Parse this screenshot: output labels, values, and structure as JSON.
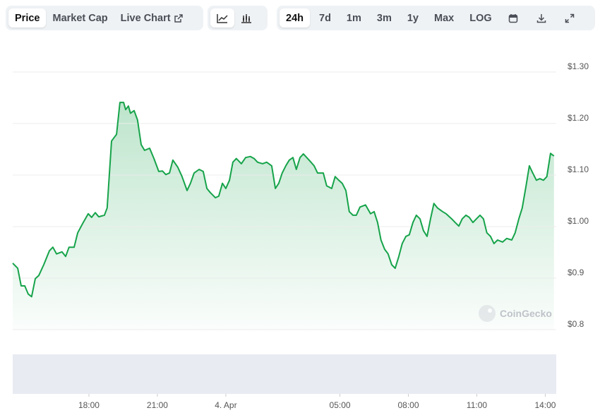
{
  "toolbar": {
    "tabs": [
      "Price",
      "Market Cap",
      "Live Chart"
    ],
    "ranges": [
      "24h",
      "7d",
      "1m",
      "3m",
      "1y",
      "Max",
      "LOG"
    ]
  },
  "chart_data": {
    "type": "area",
    "watermark": "CoinGecko",
    "color": "#16a34a",
    "x": [
      14.66,
      14.88,
      15.03,
      15.19,
      15.34,
      15.49,
      15.65,
      15.8,
      16.02,
      16.27,
      16.42,
      16.58,
      16.82,
      16.98,
      17.13,
      17.35,
      17.51,
      17.75,
      17.97,
      18.12,
      18.28,
      18.43,
      18.68,
      18.8,
      18.99,
      19.11,
      19.21,
      19.36,
      19.52,
      19.61,
      19.73,
      19.82,
      19.98,
      20.13,
      20.29,
      20.44,
      20.66,
      20.85,
      21.06,
      21.22,
      21.37,
      21.53,
      21.68,
      21.9,
      22.08,
      22.3,
      22.45,
      22.61,
      22.83,
      23.01,
      23.17,
      23.32,
      23.54,
      23.69,
      23.85,
      24.0,
      24.16,
      24.31,
      24.46,
      24.68,
      24.87,
      25.08,
      25.24,
      25.39,
      25.61,
      25.79,
      26.01,
      26.17,
      26.32,
      26.47,
      26.63,
      26.78,
      26.94,
      27.09,
      27.25,
      27.4,
      27.65,
      27.87,
      28.02,
      28.27,
      28.42,
      28.64,
      28.79,
      28.95,
      29.1,
      29.26,
      29.41,
      29.57,
      29.72,
      29.88,
      30.12,
      30.34,
      30.5,
      30.65,
      30.8,
      30.96,
      31.11,
      31.27,
      31.42,
      31.58,
      31.73,
      31.89,
      32.04,
      32.2,
      32.35,
      32.51,
      32.66,
      32.82,
      32.97,
      33.12,
      33.28,
      33.5,
      33.65,
      33.9,
      34.05,
      34.21,
      34.36,
      34.52,
      34.67,
      34.83,
      34.98,
      35.14,
      35.29,
      35.44,
      35.6,
      35.75,
      35.91,
      36.13,
      36.31,
      36.53,
      36.68,
      36.84,
      36.99,
      37.15,
      37.3,
      37.45,
      37.61,
      37.76,
      37.92,
      38.07,
      38.23,
      38.38
    ],
    "values": [
      0.929,
      0.919,
      0.885,
      0.885,
      0.869,
      0.864,
      0.899,
      0.905,
      0.926,
      0.953,
      0.96,
      0.947,
      0.951,
      0.942,
      0.96,
      0.96,
      0.988,
      1.008,
      1.025,
      1.018,
      1.027,
      1.019,
      1.022,
      1.036,
      1.166,
      1.173,
      1.179,
      1.241,
      1.241,
      1.227,
      1.234,
      1.22,
      1.225,
      1.207,
      1.159,
      1.148,
      1.152,
      1.132,
      1.107,
      1.108,
      1.101,
      1.104,
      1.129,
      1.115,
      1.097,
      1.07,
      1.084,
      1.104,
      1.111,
      1.107,
      1.074,
      1.066,
      1.056,
      1.059,
      1.084,
      1.074,
      1.09,
      1.125,
      1.132,
      1.122,
      1.134,
      1.136,
      1.132,
      1.125,
      1.122,
      1.125,
      1.118,
      1.074,
      1.084,
      1.104,
      1.118,
      1.129,
      1.134,
      1.111,
      1.134,
      1.141,
      1.129,
      1.118,
      1.104,
      1.104,
      1.079,
      1.074,
      1.097,
      1.09,
      1.084,
      1.07,
      1.029,
      1.022,
      1.022,
      1.038,
      1.042,
      1.025,
      1.029,
      1.008,
      0.974,
      0.956,
      0.947,
      0.926,
      0.919,
      0.942,
      0.967,
      0.981,
      0.984,
      1.008,
      1.022,
      1.015,
      0.992,
      0.981,
      1.015,
      1.045,
      1.036,
      1.029,
      1.025,
      1.015,
      1.008,
      1.001,
      1.015,
      1.022,
      1.018,
      1.008,
      1.015,
      1.022,
      1.015,
      0.988,
      0.981,
      0.967,
      0.974,
      0.97,
      0.977,
      0.974,
      0.988,
      1.015,
      1.036,
      1.077,
      1.118,
      1.104,
      1.09,
      1.093,
      1.09,
      1.097,
      1.142,
      1.137
    ],
    "xlim": [
      14.66,
      38.48
    ],
    "xticks": [
      {
        "value": 18,
        "label": "18:00"
      },
      {
        "value": 21,
        "label": "21:00"
      },
      {
        "value": 24,
        "label": "4. Apr"
      },
      {
        "value": 29,
        "label": "05:00"
      },
      {
        "value": 32,
        "label": "08:00"
      },
      {
        "value": 35,
        "label": "11:00"
      },
      {
        "value": 38,
        "label": "14:00"
      }
    ],
    "ylim": [
      0.8,
      1.3
    ],
    "yticks": [
      {
        "value": 0.8,
        "label": "$0.8"
      },
      {
        "value": 0.9,
        "label": "$0.9"
      },
      {
        "value": 1.0,
        "label": "$1.00"
      },
      {
        "value": 1.1,
        "label": "$1.10"
      },
      {
        "value": 1.2,
        "label": "$1.20"
      },
      {
        "value": 1.3,
        "label": "$1.30"
      }
    ],
    "grid": true
  }
}
